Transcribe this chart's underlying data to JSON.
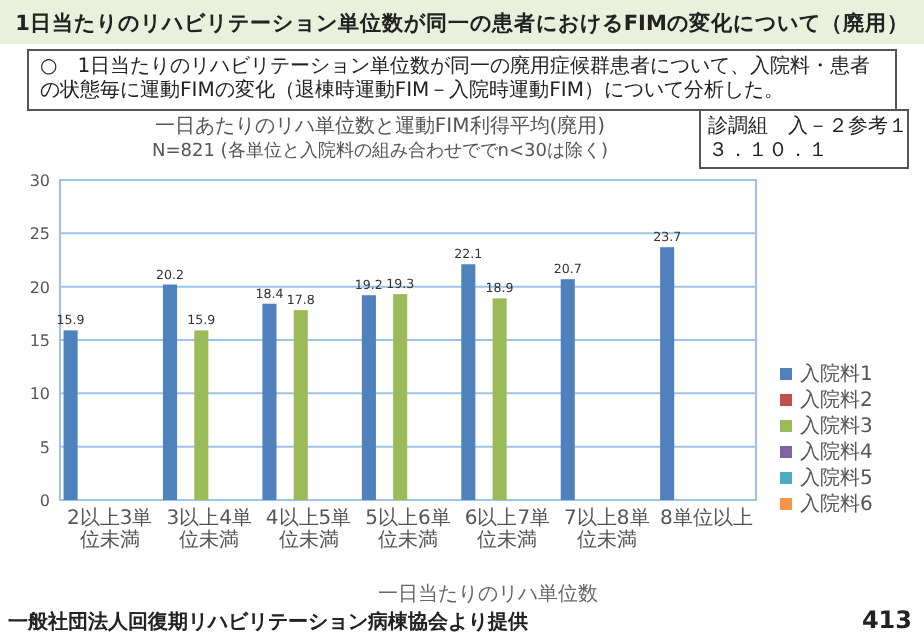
{
  "chart_data": {
    "type": "bar",
    "title": "1日当たりのリハビリテーション単位数が同一の患者におけるFIMの変化について（廃用）",
    "subtitle": "一日あたりのリハ単位数と運動FIM利得平均(廃用)\nN=821 (各単位と入院料の組み合わせででn<30は除く)",
    "xlabel": "一日当たりのリハ単位数",
    "categories": [
      "2以上3単位未満",
      "3以上4単位未満",
      "4以上5単位未満",
      "5以上6単位未満",
      "6以上7単位未満",
      "7以上8単位未満",
      "8単位以上"
    ],
    "series": [
      {
        "name": "入院料1",
        "color": "#4f81bd",
        "values": [
          15.9,
          20.2,
          18.4,
          19.2,
          22.1,
          20.7,
          23.7
        ]
      },
      {
        "name": "入院料2",
        "color": "#c0504d",
        "values": [
          null,
          null,
          null,
          null,
          null,
          null,
          null
        ]
      },
      {
        "name": "入院料3",
        "color": "#9bbb59",
        "values": [
          null,
          15.9,
          17.8,
          19.3,
          18.9,
          null,
          null
        ]
      },
      {
        "name": "入院料4",
        "color": "#8064a2",
        "values": [
          null,
          null,
          null,
          null,
          null,
          null,
          null
        ]
      },
      {
        "name": "入院料5",
        "color": "#4bacc6",
        "values": [
          null,
          null,
          null,
          null,
          null,
          null,
          null
        ]
      },
      {
        "name": "入院料6",
        "color": "#f79646",
        "values": [
          null,
          null,
          null,
          null,
          null,
          null,
          null
        ]
      }
    ],
    "ylim": [
      0,
      30
    ],
    "yticks": [
      0,
      5,
      10,
      15,
      20,
      25,
      30
    ],
    "grid": "y",
    "legend": "right",
    "data_labels": true,
    "annotations": [
      "○　1日当たりのリハビリテーション単位数が同一の廃用症候群患者について、入院料・患者の状態毎に運動FIMの変化（退棟時運動FIM－入院時運動FIM）について分析した。",
      "診調組　入－２参考１",
      "３．１０．１",
      "一般社団法人回復期リハビリテーション病棟協会より提供",
      "413"
    ]
  }
}
